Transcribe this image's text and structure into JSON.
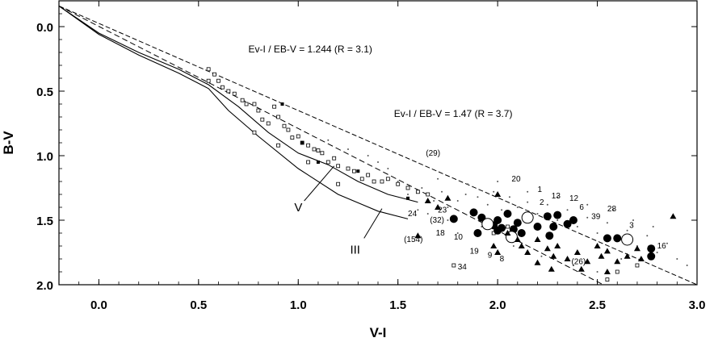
{
  "chart_data": {
    "type": "scatter",
    "xlabel": "V-I",
    "ylabel": "B-V",
    "xlim": [
      -0.2,
      3.0
    ],
    "ylim": [
      2.0,
      -0.2
    ],
    "y_inverted": true,
    "grid": false,
    "x_ticks": [
      "0.0",
      "0.5",
      "1.0",
      "1.5",
      "2.0",
      "2.5",
      "3.0"
    ],
    "y_ticks": [
      "0.0",
      "0.5",
      "1.0",
      "1.5",
      "2.0"
    ],
    "reddening_lines": [
      {
        "label": "Ev-I / EB-V = 1.244 (R = 3.1)",
        "style": "dashed",
        "x": [
          -0.2,
          2.53
        ],
        "y": [
          -0.16,
          2.0
        ]
      },
      {
        "label": "Ev-I / EB-V = 1.47 (R = 3.7)",
        "style": "dashed",
        "x": [
          -0.2,
          3.0
        ],
        "y": [
          -0.16,
          2.0
        ]
      }
    ],
    "formula_labels": [
      {
        "text": "Ev-I / EB-V = 1.244  (R = 3.1)",
        "x": 0.75,
        "y": 0.2
      },
      {
        "text": "Ev-I / EB-V = 1.47  (R = 3.7)",
        "x": 1.48,
        "y": 0.7
      }
    ],
    "sequences": [
      {
        "label": "V",
        "x": [
          -0.2,
          0.0,
          0.2,
          0.4,
          0.55,
          0.7,
          0.85,
          1.0,
          1.15,
          1.3,
          1.45,
          1.55,
          1.6
        ],
        "y": [
          -0.16,
          0.05,
          0.2,
          0.33,
          0.45,
          0.62,
          0.82,
          0.98,
          1.07,
          1.2,
          1.3,
          1.34,
          1.36
        ]
      },
      {
        "label": "III",
        "x": [
          -0.2,
          0.0,
          0.2,
          0.4,
          0.55,
          0.65,
          0.8,
          1.0,
          1.2,
          1.4,
          1.55
        ],
        "y": [
          -0.16,
          0.06,
          0.22,
          0.36,
          0.48,
          0.65,
          0.85,
          1.1,
          1.3,
          1.43,
          1.49
        ]
      }
    ],
    "sequence_labels": [
      {
        "text": "V",
        "x": 0.98,
        "y": 1.43
      },
      {
        "text": "III",
        "x": 1.26,
        "y": 1.76
      }
    ],
    "sequence_pointers": [
      {
        "from": [
          1.03,
          1.35
        ],
        "to": [
          1.18,
          1.08
        ]
      },
      {
        "from": [
          1.33,
          1.64
        ],
        "to": [
          1.42,
          1.41
        ]
      }
    ],
    "series": [
      {
        "marker": "open-square",
        "points": [
          [
            0.55,
            0.33
          ],
          [
            0.55,
            0.42
          ],
          [
            0.58,
            0.37
          ],
          [
            0.6,
            0.42
          ],
          [
            0.62,
            0.47
          ],
          [
            0.65,
            0.5
          ],
          [
            0.68,
            0.52
          ],
          [
            0.72,
            0.57
          ],
          [
            0.74,
            0.6
          ],
          [
            0.78,
            0.6
          ],
          [
            0.8,
            0.65
          ],
          [
            0.82,
            0.72
          ],
          [
            0.85,
            0.75
          ],
          [
            0.88,
            0.62
          ],
          [
            0.9,
            0.7
          ],
          [
            0.93,
            0.77
          ],
          [
            0.95,
            0.8
          ],
          [
            0.97,
            0.86
          ],
          [
            1.0,
            0.85
          ],
          [
            1.02,
            0.9
          ],
          [
            1.05,
            0.92
          ],
          [
            1.08,
            0.95
          ],
          [
            1.1,
            0.96
          ],
          [
            1.12,
            0.98
          ],
          [
            1.15,
            1.05
          ],
          [
            1.18,
            1.02
          ],
          [
            1.2,
            1.08
          ],
          [
            1.25,
            1.1
          ],
          [
            1.28,
            1.12
          ],
          [
            1.32,
            1.18
          ],
          [
            1.35,
            1.15
          ],
          [
            1.38,
            1.2
          ],
          [
            1.42,
            1.2
          ],
          [
            1.45,
            1.18
          ],
          [
            1.5,
            1.22
          ],
          [
            1.55,
            1.25
          ],
          [
            1.6,
            1.28
          ],
          [
            1.65,
            1.3
          ],
          [
            0.78,
            0.82
          ],
          [
            0.9,
            0.92
          ],
          [
            1.05,
            1.05
          ],
          [
            1.2,
            1.22
          ],
          [
            1.78,
            1.85
          ],
          [
            1.98,
            1.6
          ],
          [
            2.05,
            1.55
          ],
          [
            2.55,
            1.96
          ],
          [
            2.7,
            1.85
          ],
          [
            2.6,
            1.9
          ]
        ]
      },
      {
        "marker": "filled-square",
        "points": [
          [
            0.92,
            0.6
          ],
          [
            1.02,
            0.9
          ],
          [
            1.1,
            1.05
          ],
          [
            1.3,
            1.12
          ],
          [
            1.55,
            1.33
          ]
        ]
      },
      {
        "marker": "small-dot",
        "points": [
          [
            1.5,
            1.2
          ],
          [
            1.55,
            1.3
          ],
          [
            1.62,
            1.25
          ],
          [
            1.68,
            1.35
          ],
          [
            1.72,
            1.28
          ],
          [
            1.75,
            1.4
          ],
          [
            1.8,
            1.35
          ],
          [
            1.84,
            1.3
          ],
          [
            1.88,
            1.42
          ],
          [
            1.9,
            1.32
          ],
          [
            1.95,
            1.38
          ],
          [
            1.98,
            1.28
          ],
          [
            2.02,
            1.42
          ],
          [
            2.06,
            1.32
          ],
          [
            2.1,
            1.4
          ],
          [
            2.15,
            1.36
          ],
          [
            2.2,
            1.45
          ],
          [
            2.25,
            1.38
          ],
          [
            2.3,
            1.5
          ],
          [
            2.35,
            1.42
          ],
          [
            2.4,
            1.55
          ],
          [
            2.45,
            1.48
          ],
          [
            2.5,
            1.6
          ],
          [
            2.55,
            1.52
          ],
          [
            2.6,
            1.65
          ],
          [
            2.65,
            1.58
          ],
          [
            2.7,
            1.7
          ],
          [
            2.75,
            1.62
          ],
          [
            2.8,
            1.75
          ],
          [
            2.85,
            1.68
          ],
          [
            1.7,
            1.18
          ],
          [
            1.85,
            1.22
          ],
          [
            2.0,
            1.2
          ],
          [
            2.15,
            1.28
          ],
          [
            2.3,
            1.32
          ],
          [
            2.45,
            1.38
          ],
          [
            1.6,
            1.42
          ],
          [
            1.75,
            1.5
          ],
          [
            1.92,
            1.55
          ],
          [
            2.08,
            1.7
          ],
          [
            2.22,
            1.78
          ],
          [
            2.38,
            1.85
          ],
          [
            2.5,
            1.9
          ],
          [
            2.62,
            1.8
          ],
          [
            2.9,
            1.8
          ],
          [
            2.95,
            1.85
          ],
          [
            1.45,
            1.1
          ],
          [
            1.4,
            1.05
          ],
          [
            1.25,
            0.95
          ],
          [
            1.15,
            0.88
          ],
          [
            1.35,
            1.0
          ],
          [
            2.78,
            1.55
          ],
          [
            2.68,
            1.5
          ],
          [
            2.58,
            1.42
          ],
          [
            1.65,
            1.45
          ],
          [
            1.8,
            1.6
          ]
        ]
      },
      {
        "marker": "filled-circle",
        "points": [
          [
            1.78,
            1.49
          ],
          [
            1.88,
            1.44
          ],
          [
            1.92,
            1.48
          ],
          [
            1.95,
            1.52
          ],
          [
            1.98,
            1.54
          ],
          [
            2.0,
            1.5
          ],
          [
            2.02,
            1.56
          ],
          [
            2.05,
            1.45
          ],
          [
            2.08,
            1.57
          ],
          [
            2.1,
            1.52
          ],
          [
            2.12,
            1.6
          ],
          [
            2.2,
            1.55
          ],
          [
            2.25,
            1.47
          ],
          [
            2.28,
            1.55
          ],
          [
            2.3,
            1.46
          ],
          [
            2.35,
            1.53
          ],
          [
            2.38,
            1.5
          ],
          [
            2.55,
            1.64
          ],
          [
            2.6,
            1.64
          ],
          [
            1.9,
            1.6
          ],
          [
            2.26,
            1.62
          ],
          [
            2.77,
            1.72
          ],
          [
            2.77,
            1.78
          ],
          [
            2.0,
            1.58
          ]
        ]
      },
      {
        "marker": "open-circle",
        "points": [
          [
            2.15,
            1.48
          ],
          [
            2.65,
            1.65
          ],
          [
            1.95,
            1.53
          ],
          [
            2.07,
            1.63
          ]
        ]
      },
      {
        "marker": "filled-triangle",
        "points": [
          [
            1.6,
            1.62
          ],
          [
            1.65,
            1.35
          ],
          [
            1.7,
            1.4
          ],
          [
            1.75,
            1.33
          ],
          [
            2.0,
            1.3
          ],
          [
            2.05,
            1.6
          ],
          [
            2.1,
            1.65
          ],
          [
            2.12,
            1.7
          ],
          [
            2.15,
            1.75
          ],
          [
            2.2,
            1.65
          ],
          [
            2.25,
            1.72
          ],
          [
            2.28,
            1.78
          ],
          [
            2.3,
            1.7
          ],
          [
            2.35,
            1.8
          ],
          [
            2.4,
            1.75
          ],
          [
            2.45,
            1.82
          ],
          [
            2.5,
            1.7
          ],
          [
            2.52,
            1.78
          ],
          [
            2.55,
            1.74
          ],
          [
            2.6,
            1.82
          ],
          [
            2.65,
            1.78
          ],
          [
            2.7,
            1.72
          ],
          [
            2.72,
            1.8
          ],
          [
            2.88,
            1.47
          ],
          [
            2.2,
            1.83
          ],
          [
            2.27,
            1.88
          ],
          [
            2.42,
            1.88
          ],
          [
            2.55,
            1.9
          ],
          [
            2.0,
            1.75
          ],
          [
            1.98,
            1.7
          ]
        ]
      }
    ],
    "point_labels": [
      {
        "text": "(29)",
        "x": 1.64,
        "y": 1.0
      },
      {
        "text": "20",
        "x": 2.07,
        "y": 1.2
      },
      {
        "text": "1",
        "x": 2.2,
        "y": 1.28
      },
      {
        "text": "2",
        "x": 2.21,
        "y": 1.38
      },
      {
        "text": "13",
        "x": 2.27,
        "y": 1.33
      },
      {
        "text": "12",
        "x": 2.36,
        "y": 1.35
      },
      {
        "text": "6",
        "x": 2.41,
        "y": 1.42
      },
      {
        "text": "28",
        "x": 2.55,
        "y": 1.43
      },
      {
        "text": "39",
        "x": 2.47,
        "y": 1.49
      },
      {
        "text": "3",
        "x": 2.66,
        "y": 1.56
      },
      {
        "text": "16",
        "x": 2.8,
        "y": 1.72
      },
      {
        "text": "23",
        "x": 1.7,
        "y": 1.44
      },
      {
        "text": "(32)",
        "x": 1.66,
        "y": 1.52
      },
      {
        "text": "18",
        "x": 1.69,
        "y": 1.62
      },
      {
        "text": "10",
        "x": 1.78,
        "y": 1.65
      },
      {
        "text": "24",
        "x": 1.55,
        "y": 1.47
      },
      {
        "text": "(154)",
        "x": 1.53,
        "y": 1.67
      },
      {
        "text": "19",
        "x": 1.86,
        "y": 1.76
      },
      {
        "text": "9",
        "x": 1.95,
        "y": 1.79
      },
      {
        "text": "8",
        "x": 2.01,
        "y": 1.82
      },
      {
        "text": "(26)",
        "x": 2.37,
        "y": 1.84
      },
      {
        "text": "34",
        "x": 1.8,
        "y": 1.88
      }
    ]
  }
}
